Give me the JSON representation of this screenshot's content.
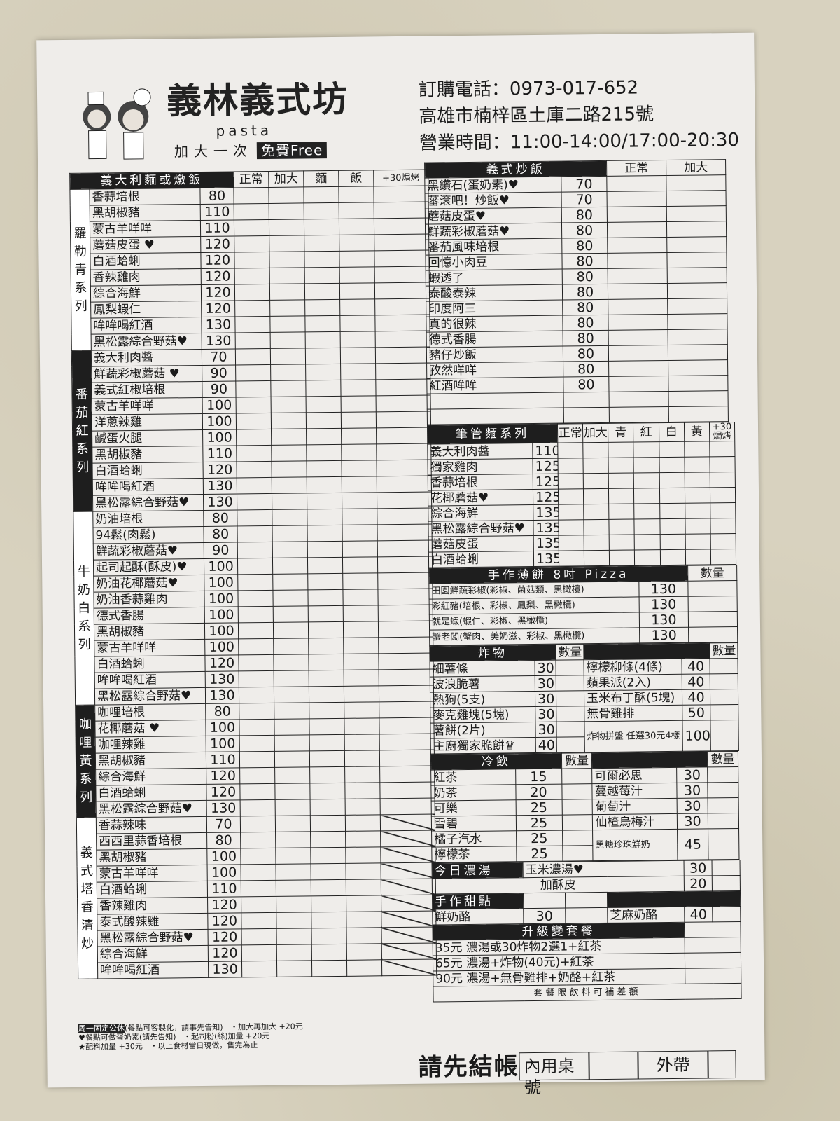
{
  "header": {
    "logo_text": "義林義式坊",
    "logo_sub": "pasta",
    "free_prefix": "加大一次",
    "free_badge": "免費Free",
    "phone": "訂購電話：0973-017-652",
    "address": "高雄市楠梓區土庫二路215號",
    "hours": "營業時間：11:00-14:00/17:00-20:30"
  },
  "left": {
    "title": "義大利麵或燉飯",
    "cols": [
      "正常",
      "加大",
      "麵",
      "飯",
      "+30焗烤"
    ],
    "groups": [
      {
        "name": "羅勒青系列",
        "dark": false,
        "items": [
          [
            "香蒜培根",
            "80"
          ],
          [
            "黑胡椒豬",
            "110"
          ],
          [
            "蒙古羊咩咩",
            "110"
          ],
          [
            "蘑菇皮蛋 ♥",
            "120"
          ],
          [
            "白酒蛤蜊",
            "120"
          ],
          [
            "香辣雞肉",
            "120"
          ],
          [
            "綜合海鮮",
            "120"
          ],
          [
            "鳳梨蝦仁",
            "120"
          ],
          [
            "哞哞喝紅酒",
            "130"
          ],
          [
            "黑松露綜合野菇♥",
            "130"
          ]
        ]
      },
      {
        "name": "番茄紅系列",
        "dark": true,
        "items": [
          [
            "義大利肉醬",
            "70"
          ],
          [
            "鮮蔬彩椒蘑菇 ♥",
            "90"
          ],
          [
            "義式紅椒培根",
            "90"
          ],
          [
            "蒙古羊咩咩",
            "100"
          ],
          [
            "洋蔥辣雞",
            "100"
          ],
          [
            "鹹蛋火腿",
            "100"
          ],
          [
            "黑胡椒豬",
            "110"
          ],
          [
            "白酒蛤蜊",
            "120"
          ],
          [
            "哞哞喝紅酒",
            "130"
          ],
          [
            "黑松露綜合野菇♥",
            "130"
          ]
        ]
      },
      {
        "name": "牛奶白系列",
        "dark": false,
        "items": [
          [
            "奶油培根",
            "80"
          ],
          [
            "94鬆(肉鬆)",
            "80"
          ],
          [
            "鮮蔬彩椒蘑菇♥",
            "90"
          ],
          [
            "起司起酥(酥皮)♥",
            "100"
          ],
          [
            "奶油花椰蘑菇♥",
            "100"
          ],
          [
            "奶油香蒜雞肉",
            "100"
          ],
          [
            "德式香腸",
            "100"
          ],
          [
            "黑胡椒豬",
            "100"
          ],
          [
            "蒙古羊咩咩",
            "100"
          ],
          [
            "白酒蛤蜊",
            "120"
          ],
          [
            "哞哞喝紅酒",
            "130"
          ],
          [
            "黑松露綜合野菇♥",
            "130"
          ]
        ]
      },
      {
        "name": "咖哩黃系列",
        "dark": true,
        "items": [
          [
            "咖哩培根",
            "80"
          ],
          [
            "花椰蘑菇 ♥",
            "100"
          ],
          [
            "咖哩辣雞",
            "100"
          ],
          [
            "黑胡椒豬",
            "110"
          ],
          [
            "綜合海鮮",
            "120"
          ],
          [
            "白酒蛤蜊",
            "120"
          ],
          [
            "黑松露綜合野菇♥",
            "130"
          ]
        ]
      },
      {
        "name": "義式塔香清炒",
        "dark": false,
        "slash": true,
        "items": [
          [
            "香蒜辣味",
            "70"
          ],
          [
            "西西里蒜香培根",
            "80"
          ],
          [
            "黑胡椒豬",
            "100"
          ],
          [
            "蒙古羊咩咩",
            "100"
          ],
          [
            "白酒蛤蜊",
            "110"
          ],
          [
            "香辣雞肉",
            "120"
          ],
          [
            "泰式酸辣雞",
            "120"
          ],
          [
            "黑松露綜合野菇♥",
            "120"
          ],
          [
            "綜合海鮮",
            "120"
          ],
          [
            "哞哞喝紅酒",
            "130"
          ]
        ]
      }
    ]
  },
  "fried_rice": {
    "title": "義式炒飯",
    "cols": [
      "正常",
      "加大"
    ],
    "items": [
      [
        "黑鑽石(蛋奶素)♥",
        "70"
      ],
      [
        "蕃滾吧！炒飯♥",
        "70"
      ],
      [
        "蘑菇皮蛋♥",
        "80"
      ],
      [
        "鮮蔬彩椒蘑菇♥",
        "80"
      ],
      [
        "番茄風味培根",
        "80"
      ],
      [
        "回憶小肉豆",
        "80"
      ],
      [
        "蝦透了",
        "80"
      ],
      [
        "泰酸泰辣",
        "80"
      ],
      [
        "印度阿三",
        "80"
      ],
      [
        "真的很辣",
        "80"
      ],
      [
        "德式香腸",
        "80"
      ],
      [
        "豬仔炒飯",
        "80"
      ],
      [
        "孜然咩咩",
        "80"
      ],
      [
        "紅酒哞哞",
        "80"
      ]
    ]
  },
  "penne": {
    "title": "筆管麵系列",
    "cols": [
      "正常",
      "加大",
      "青",
      "紅",
      "白",
      "黃",
      "+30焗烤"
    ],
    "items": [
      [
        "義大利肉醬",
        "110"
      ],
      [
        "獨家雞肉",
        "125"
      ],
      [
        "香蒜培根",
        "125"
      ],
      [
        "花椰蘑菇♥",
        "125"
      ],
      [
        "綜合海鮮",
        "135"
      ],
      [
        "黑松露綜合野菇♥",
        "135"
      ],
      [
        "蘑菇皮蛋",
        "135"
      ],
      [
        "白酒蛤蜊",
        "135"
      ]
    ]
  },
  "pizza": {
    "title": "手作薄餅 8吋 Pizza",
    "qty": "數量",
    "items": [
      [
        "田園鮮蔬彩椒(彩椒、菌菇類、黑橄欖)",
        "130"
      ],
      [
        "彩紅豬(培根、彩椒、鳳梨、黑橄欖)",
        "130"
      ],
      [
        "就是蝦(蝦仁、彩椒、黑橄欖)",
        "130"
      ],
      [
        "蟹老闆(蟹肉、美奶滋、彩椒、黑橄欖)",
        "130"
      ]
    ]
  },
  "fried": {
    "title": "炸物",
    "qty": "數量",
    "left": [
      [
        "細薯條",
        "30"
      ],
      [
        "波浪脆薯",
        "30"
      ],
      [
        "熱狗(5支)",
        "30"
      ],
      [
        "麥克雞塊(5塊)",
        "30"
      ],
      [
        "薯餅(2片)",
        "30"
      ],
      [
        "主廚獨家脆餅♛",
        "40"
      ]
    ],
    "right": [
      [
        "檸檬柳條(4條)",
        "40"
      ],
      [
        "蘋果派(2入)",
        "40"
      ],
      [
        "玉米布丁酥(5塊)",
        "40"
      ],
      [
        "無骨雞排",
        "50"
      ],
      [
        "炸物拼盤 任選30元4樣",
        "100"
      ]
    ]
  },
  "drinks": {
    "title": "冷飲",
    "qty": "數量",
    "left": [
      [
        "紅茶",
        "15"
      ],
      [
        "奶茶",
        "20"
      ],
      [
        "可樂",
        "25"
      ],
      [
        "雪碧",
        "25"
      ],
      [
        "橘子汽水",
        "25"
      ],
      [
        "檸檬茶",
        "25"
      ]
    ],
    "right": [
      [
        "可爾必思",
        "30"
      ],
      [
        "蔓越莓汁",
        "30"
      ],
      [
        "葡萄汁",
        "30"
      ],
      [
        "仙楂烏梅汁",
        "30"
      ],
      [
        "黑糖珍珠鮮奶",
        "45"
      ]
    ]
  },
  "soup": {
    "title": "今日濃湯",
    "name": "玉米濃湯♥",
    "price": "30",
    "extra": "加酥皮",
    "extra_price": "20"
  },
  "dessert": {
    "title": "手作甜點",
    "items": [
      [
        "鮮奶酪",
        "30"
      ],
      [
        "芝麻奶酪",
        "40"
      ]
    ]
  },
  "combo": {
    "title": "升級變套餐",
    "items": [
      "35元 濃湯或30炸物2選1+紅茶",
      "65元 濃湯+炸物(40元)+紅茶",
      "90元 濃湯+無骨雞排+奶酪+紅茶"
    ],
    "note": "套餐限飲料可補差額"
  },
  "bottom": {
    "pay": "請先結帳",
    "dine_in": "內用桌號",
    "takeout": "外帶"
  },
  "notes": {
    "closed": "周一固定公休",
    "custom": "(餐點可客製化，請事先告知)",
    "veg": "♥餐點可做蛋奶素(請先告知)",
    "extra": "★配料加量 +30元",
    "bigger": "・加大再加大",
    "bigger_price": "+20元",
    "cheese": "・起司粉(絲)加量",
    "cheese_price": "+20元",
    "fresh": "・以上食材當日現做，售完為止"
  }
}
